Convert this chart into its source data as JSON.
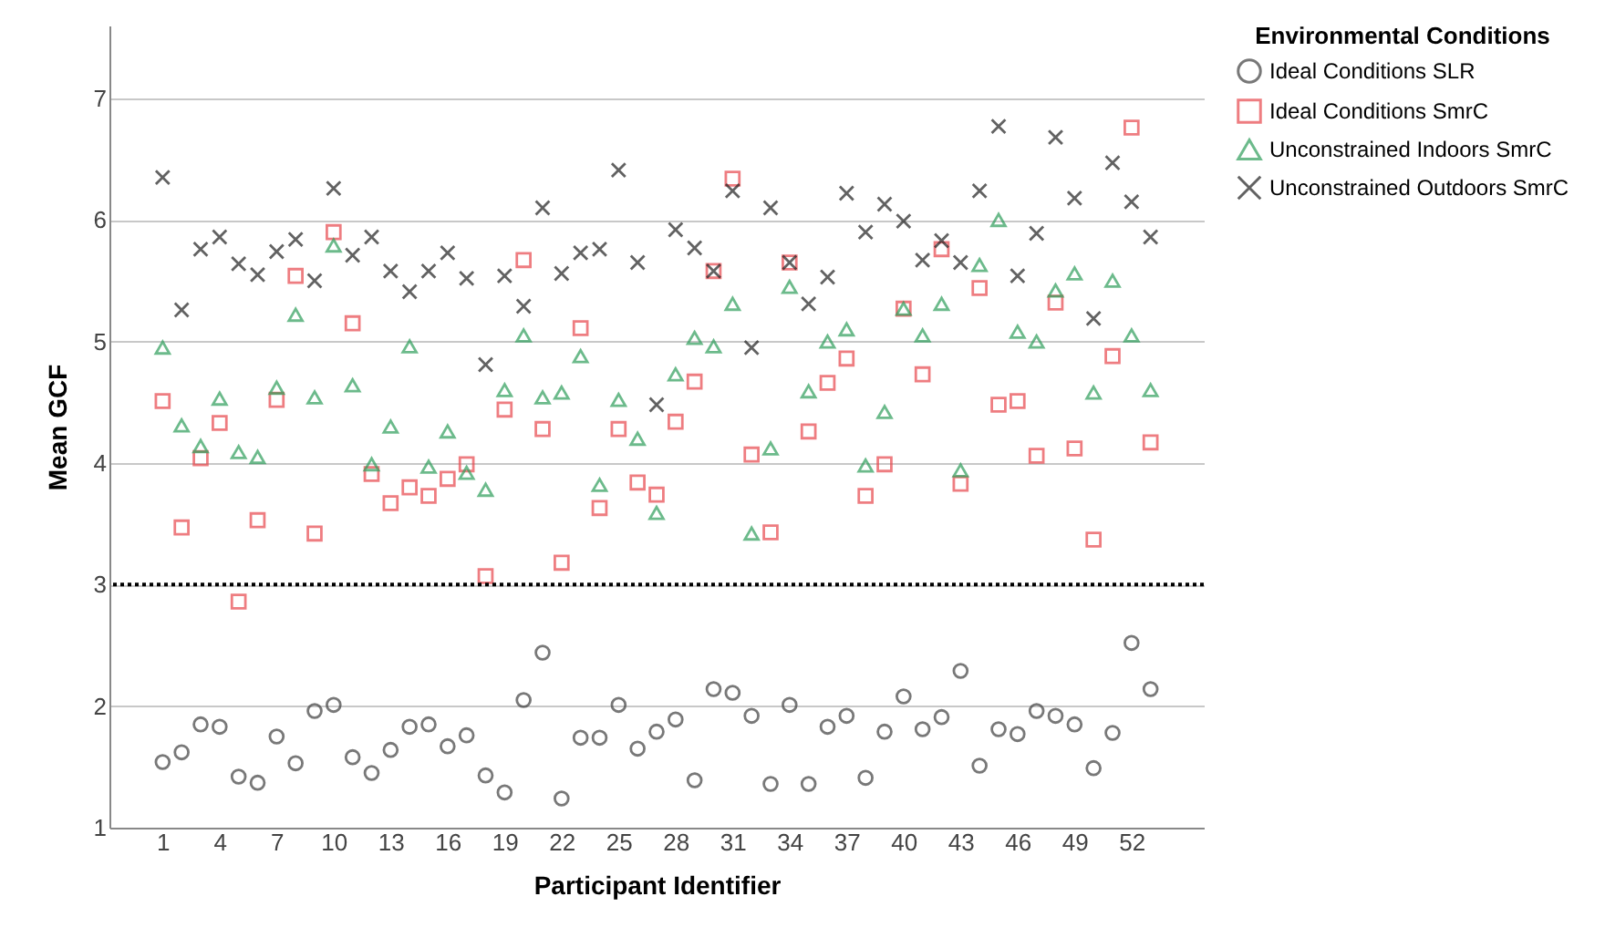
{
  "chart_data": {
    "type": "scatter",
    "xlabel": "Participant Identifier",
    "ylabel": "Mean GCF",
    "legend_title": "Environmental Conditions",
    "legend": "top right",
    "grid": "y",
    "x": [
      1,
      2,
      3,
      4,
      5,
      6,
      7,
      8,
      9,
      10,
      11,
      12,
      13,
      14,
      15,
      16,
      17,
      18,
      19,
      20,
      21,
      22,
      23,
      24,
      25,
      26,
      27,
      28,
      29,
      30,
      31,
      32,
      33,
      34,
      35,
      36,
      37,
      38,
      39,
      40,
      41,
      42,
      43,
      44,
      45,
      46,
      47,
      48,
      49,
      50,
      51,
      52,
      53
    ],
    "xlim": [
      -1.8,
      55.8
    ],
    "xticks": [
      1,
      4,
      7,
      10,
      13,
      16,
      19,
      22,
      25,
      28,
      31,
      34,
      37,
      40,
      43,
      46,
      49,
      52
    ],
    "ylim": [
      1,
      7.6
    ],
    "yticks": [
      1,
      2,
      3,
      4,
      5,
      6,
      7
    ],
    "ref_lines": [
      {
        "axis": "y",
        "value": 3,
        "line_style": "dotted",
        "color": "#000000"
      }
    ],
    "series": [
      {
        "name": "Ideal Conditions SLR",
        "color": "#404040",
        "marker": "circle",
        "values": [
          1.54,
          1.62,
          1.85,
          1.83,
          1.42,
          1.37,
          1.75,
          1.53,
          1.96,
          2.01,
          1.58,
          1.45,
          1.64,
          1.83,
          1.85,
          1.67,
          1.76,
          1.43,
          1.29,
          2.05,
          2.44,
          1.24,
          1.74,
          1.74,
          2.01,
          1.65,
          1.79,
          1.89,
          1.39,
          2.14,
          2.11,
          1.92,
          1.36,
          2.01,
          1.36,
          1.83,
          1.92,
          1.41,
          1.79,
          2.08,
          1.81,
          1.91,
          2.29,
          1.51,
          1.81,
          1.77,
          1.96,
          1.92,
          1.85,
          1.49,
          1.78,
          2.52,
          2.14
        ]
      },
      {
        "name": "Ideal Conditions SmrC",
        "color": "#e8474c",
        "marker": "square",
        "values": [
          4.51,
          3.47,
          4.04,
          4.33,
          2.86,
          3.53,
          4.52,
          5.54,
          3.42,
          5.9,
          5.15,
          3.91,
          3.67,
          3.8,
          3.73,
          3.87,
          3.99,
          3.07,
          4.44,
          5.67,
          4.28,
          3.18,
          5.11,
          3.63,
          4.28,
          3.84,
          3.74,
          4.34,
          4.67,
          5.58,
          6.34,
          4.07,
          3.43,
          5.65,
          4.26,
          4.66,
          4.86,
          3.73,
          3.99,
          5.27,
          4.73,
          5.76,
          3.83,
          5.44,
          4.48,
          4.51,
          4.06,
          5.32,
          4.12,
          3.37,
          4.88,
          6.76,
          4.17
        ]
      },
      {
        "name": "Unconstrained Indoors SmrC",
        "color": "#2e9e5b",
        "marker": "triangle",
        "values": [
          4.95,
          4.31,
          4.14,
          4.53,
          4.09,
          4.05,
          4.62,
          5.22,
          4.54,
          5.79,
          4.64,
          3.99,
          4.3,
          4.96,
          3.97,
          4.26,
          3.92,
          3.78,
          4.6,
          5.05,
          4.54,
          4.58,
          4.88,
          3.82,
          4.52,
          4.2,
          3.59,
          4.73,
          5.03,
          4.96,
          5.31,
          3.42,
          4.12,
          5.45,
          4.59,
          5.0,
          5.1,
          3.98,
          4.42,
          5.27,
          5.05,
          5.31,
          3.94,
          5.63,
          6.0,
          5.08,
          5.0,
          5.42,
          5.56,
          4.58,
          5.5,
          5.05,
          4.6
        ]
      },
      {
        "name": "Unconstrained Outdoors SmrC",
        "color": "#202020",
        "marker": "cross",
        "values": [
          6.35,
          5.26,
          5.76,
          5.86,
          5.64,
          5.55,
          5.74,
          5.84,
          5.5,
          6.26,
          5.71,
          5.86,
          5.58,
          5.41,
          5.58,
          5.73,
          5.52,
          4.81,
          5.54,
          5.29,
          6.1,
          5.56,
          5.73,
          5.76,
          6.41,
          5.65,
          4.48,
          5.92,
          5.77,
          5.58,
          6.24,
          4.95,
          6.1,
          5.65,
          5.31,
          5.53,
          6.22,
          5.9,
          6.13,
          5.99,
          5.67,
          5.83,
          5.65,
          6.24,
          6.77,
          5.54,
          5.89,
          6.68,
          6.18,
          5.19,
          6.47,
          6.15,
          5.86
        ]
      }
    ]
  }
}
